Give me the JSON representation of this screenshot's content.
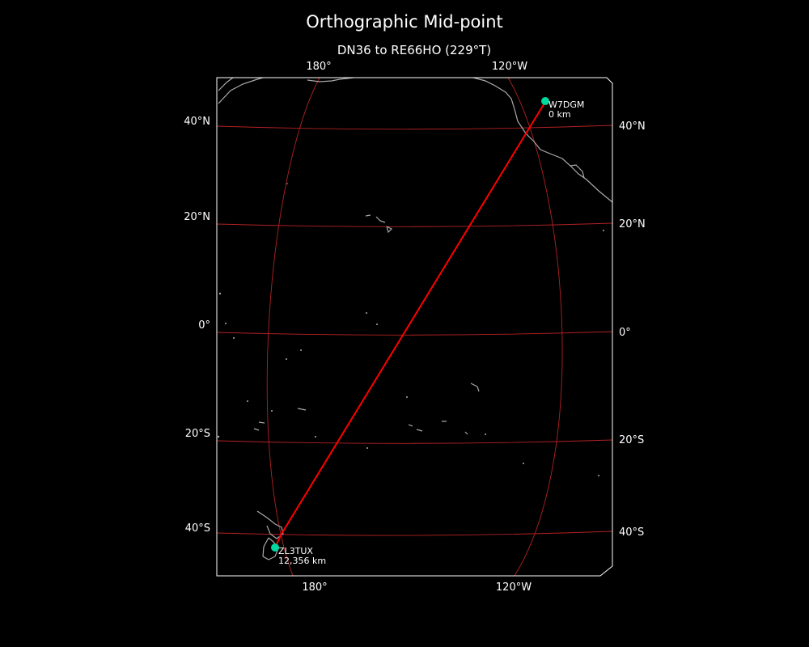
{
  "title": "Orthographic Mid-point",
  "subtitle": "DN36 to RE66HO (229°T)",
  "colors": {
    "background": "#000000",
    "path": "#ff0000",
    "grid": "#b22222",
    "coast": "#aaaaaa",
    "marker": "#00d8a0",
    "frame": "#ffffff"
  },
  "grid_labels": {
    "top": [
      "180°",
      "120°W"
    ],
    "bottom": [
      "180°",
      "120°W"
    ],
    "left": [
      "40°N",
      "20°N",
      "0°",
      "20°S",
      "40°S"
    ],
    "right": [
      "40°N",
      "20°N",
      "0°",
      "20°S",
      "40°S"
    ]
  },
  "stations": [
    {
      "call": "W7DGM",
      "distance": "0 km"
    },
    {
      "call": "ZL3TUX",
      "distance": "12,356 km"
    }
  ]
}
